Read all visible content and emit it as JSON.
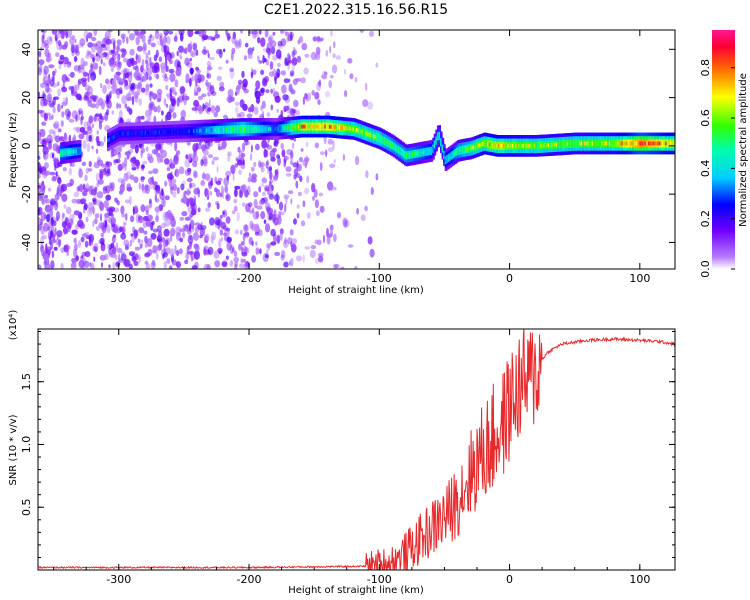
{
  "title": "C2E1.2022.315.16.56.R15",
  "chart_data": [
    {
      "type": "heatmap",
      "xlabel": "Height of straight line (km)",
      "ylabel": "Frequency (Hz)",
      "xlim": [
        -362,
        127
      ],
      "ylim": [
        -51,
        48
      ],
      "xticks": [
        -300,
        -200,
        -100,
        0,
        100
      ],
      "yticks": [
        -40,
        -20,
        0,
        20,
        40
      ],
      "colorbar": {
        "label": "Normalized spectral amplitude",
        "range": [
          0.0,
          0.95
        ],
        "ticks": [
          "0.0",
          "0.2",
          "0.4",
          "0.6",
          "0.8"
        ],
        "colormap": "rainbow (white - violet - blue - cyan - green - yellow - red - magenta)"
      },
      "ridge": {
        "description": "frequency of peak spectral amplitude vs height",
        "x": [
          -345,
          -330,
          -320,
          -300,
          -250,
          -205,
          -180,
          -160,
          -140,
          -120,
          -100,
          -90,
          -80,
          -70,
          -60,
          -55,
          -50,
          -45,
          -40,
          -30,
          -20,
          -10,
          0,
          20,
          50,
          80,
          100,
          127
        ],
        "y": [
          -3,
          -2,
          -1,
          5,
          6,
          7,
          7,
          8,
          8,
          7,
          3,
          0,
          -4,
          -3,
          -2,
          5,
          -6,
          -4,
          -2,
          -1,
          1,
          0,
          0,
          0,
          1,
          1,
          1,
          1
        ],
        "amplitude": [
          0.45,
          0.35,
          0.3,
          0.25,
          0.25,
          0.55,
          0.3,
          0.7,
          0.75,
          0.6,
          0.55,
          0.5,
          0.5,
          0.45,
          0.4,
          0.45,
          0.4,
          0.4,
          0.5,
          0.55,
          0.65,
          0.7,
          0.65,
          0.6,
          0.6,
          0.65,
          0.85,
          0.7
        ]
      }
    },
    {
      "type": "line",
      "xlabel": "Height of straight line (km)",
      "ylabel": "SNR (10 * v/v)",
      "y_multiplier": "(x10⁴)",
      "xlim": [
        -362,
        127
      ],
      "ylim": [
        0,
        1.92
      ],
      "xticks": [
        -300,
        -200,
        -100,
        0,
        100
      ],
      "yticks": [
        0.5,
        1.0,
        1.5
      ],
      "ytick_labels": [
        "0.5",
        "1.0",
        "1.5"
      ],
      "color": "#e8292b",
      "series": [
        {
          "x": [
            -362,
            -300,
            -200,
            -110,
            -95,
            -85,
            -75,
            -65,
            -55,
            -45,
            -35,
            -25,
            -15,
            -5,
            0,
            5,
            10,
            15,
            20,
            30,
            40,
            60,
            80,
            100,
            115,
            127
          ],
          "y": [
            0.02,
            0.02,
            0.02,
            0.03,
            0.06,
            0.1,
            0.2,
            0.3,
            0.4,
            0.5,
            0.7,
            0.9,
            1.05,
            1.2,
            1.35,
            1.45,
            1.55,
            1.55,
            1.62,
            1.74,
            1.8,
            1.83,
            1.84,
            1.83,
            1.82,
            1.8
          ]
        }
      ]
    }
  ]
}
